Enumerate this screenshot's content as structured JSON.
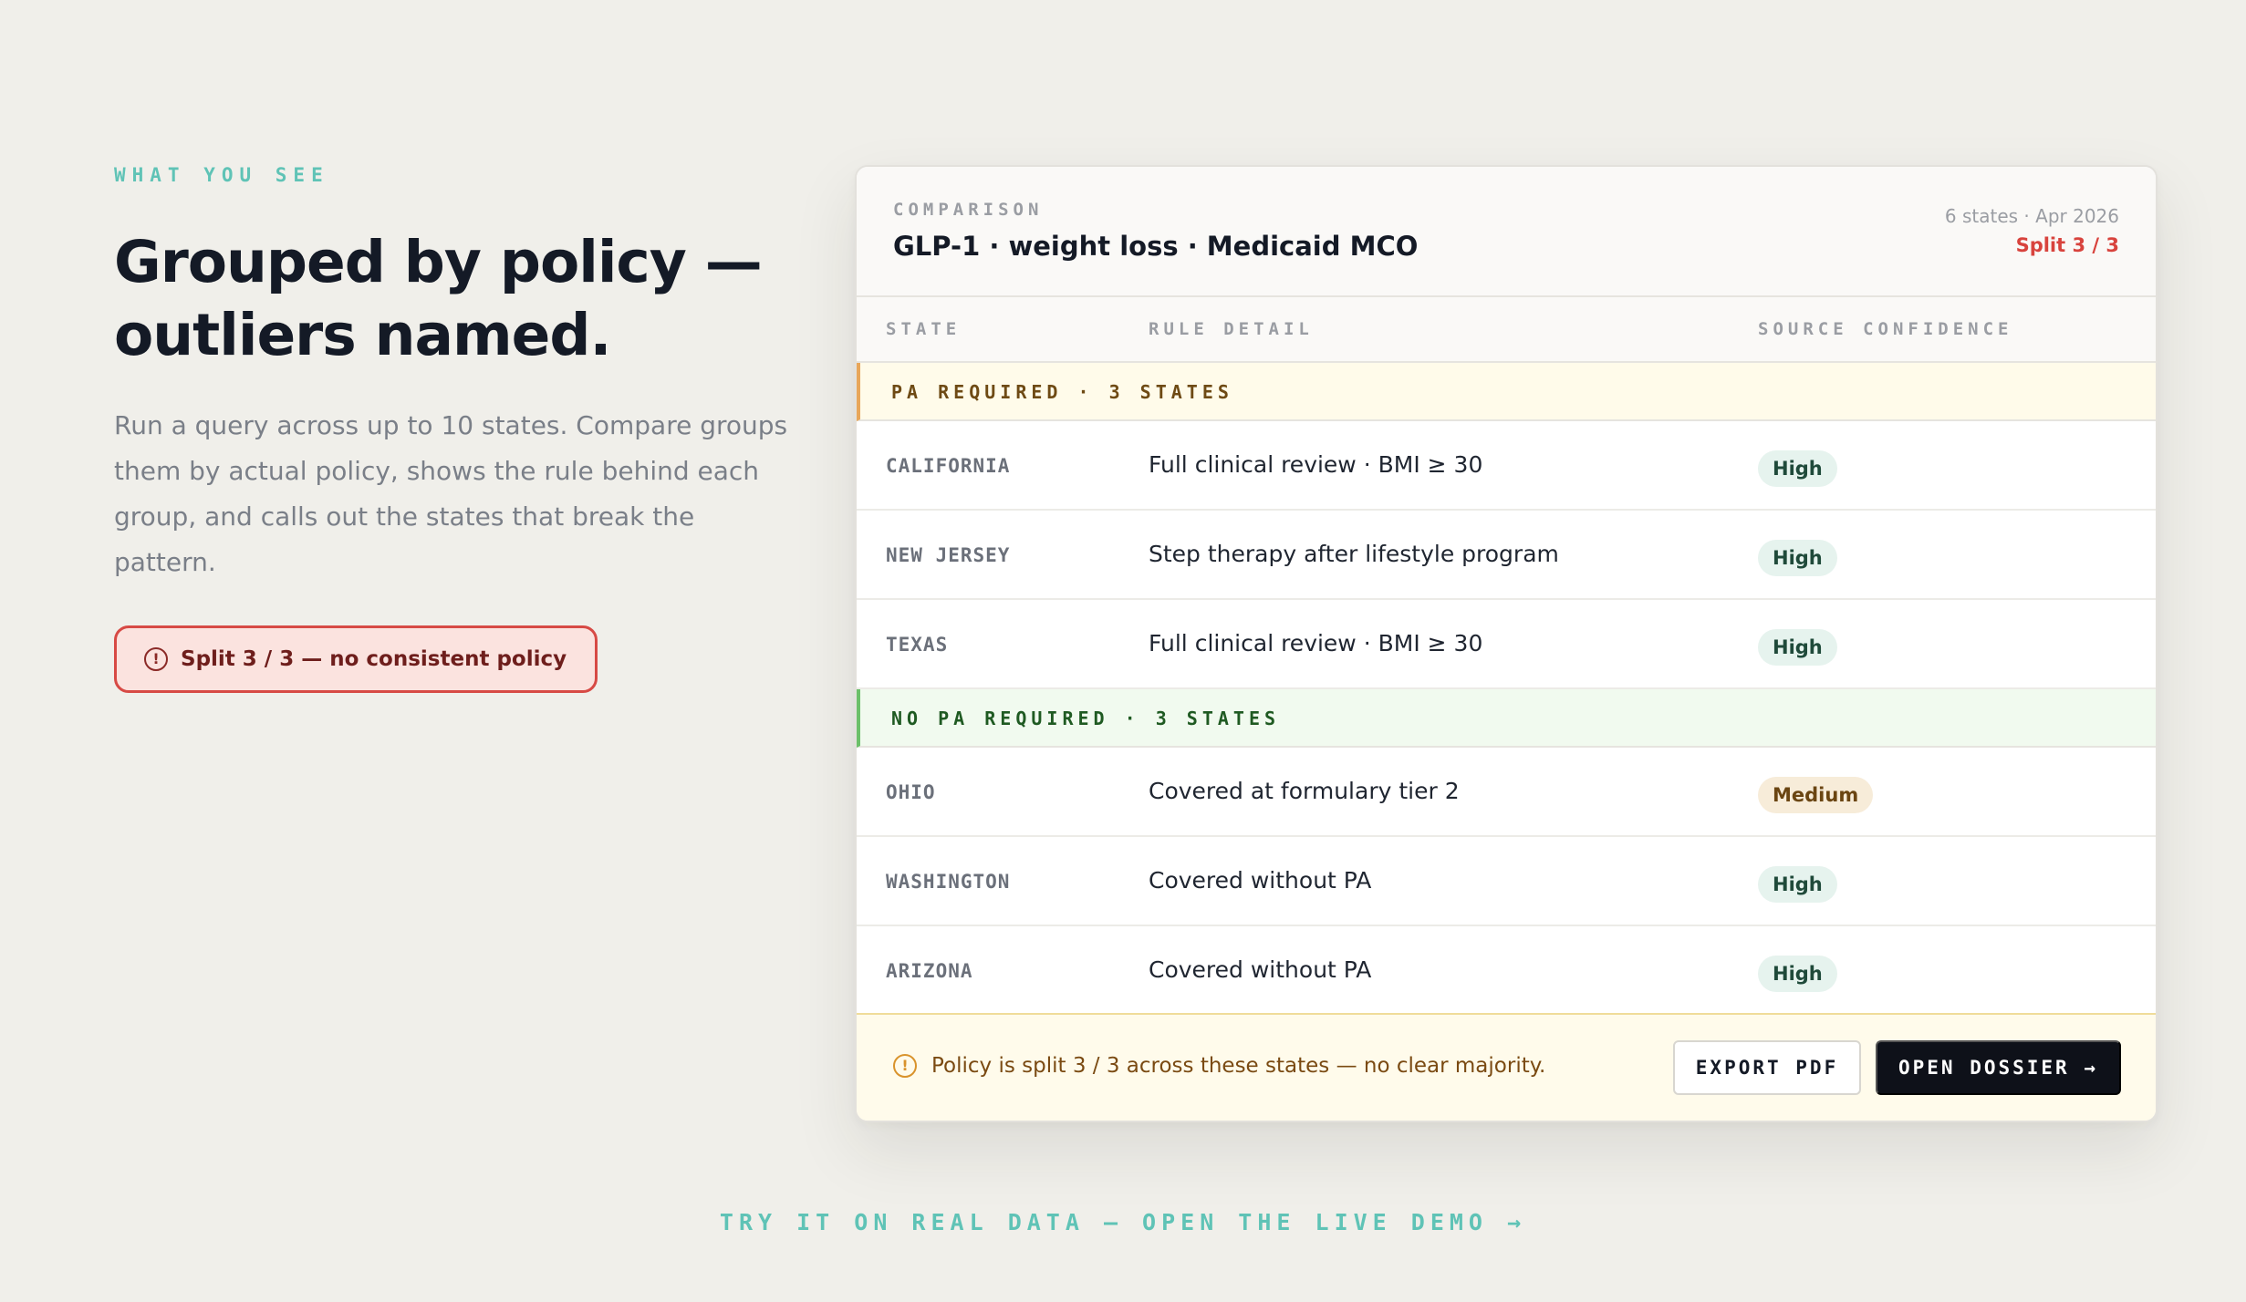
{
  "intro": {
    "eyebrow": "WHAT YOU SEE",
    "headline": "Grouped by policy — outliers named.",
    "lede": "Run a query across up to 10 states. Compare groups them by actual policy, shows the rule behind each group, and calls out the states that break the pattern.",
    "split_pill": "Split 3 / 3 — no consistent policy",
    "split_icon": "alert-circle-icon"
  },
  "card": {
    "kicker": "COMPARISON",
    "title": "GLP-1 · weight loss · Medicaid MCO",
    "meta": "6 states · Apr 2026",
    "split": "Split 3 / 3",
    "columns": [
      "STATE",
      "RULE DETAIL",
      "SOURCE CONFIDENCE"
    ],
    "groups": [
      {
        "label": "PA REQUIRED · 3 STATES",
        "accent": "#e8a65a",
        "rows": [
          {
            "state": "CALIFORNIA",
            "rule": "Full clinical review · BMI ≥ 30",
            "confidence": "High"
          },
          {
            "state": "NEW JERSEY",
            "rule": "Step therapy after lifestyle program",
            "confidence": "High"
          },
          {
            "state": "TEXAS",
            "rule": "Full clinical review · BMI ≥ 30",
            "confidence": "High"
          }
        ]
      },
      {
        "label": "NO PA REQUIRED · 3 STATES",
        "accent": "#6cc06a",
        "rows": [
          {
            "state": "OHIO",
            "rule": "Covered at formulary tier 2",
            "confidence": "Medium"
          },
          {
            "state": "WASHINGTON",
            "rule": "Covered without PA",
            "confidence": "High"
          },
          {
            "state": "ARIZONA",
            "rule": "Covered without PA",
            "confidence": "High"
          }
        ]
      }
    ],
    "footer": {
      "note": "Policy is split 3 / 3 across these states — no clear majority.",
      "export_label": "EXPORT PDF",
      "open_label": "OPEN DOSSIER →"
    }
  },
  "cta": "TRY IT ON REAL DATA — OPEN THE LIVE DEMO →",
  "colors": {
    "background": "#f0efea",
    "accent_teal": "#5fc3b6",
    "split_red": "#d8433d",
    "high_badge": "#e6f3ee",
    "medium_badge": "#f7ecd9"
  }
}
